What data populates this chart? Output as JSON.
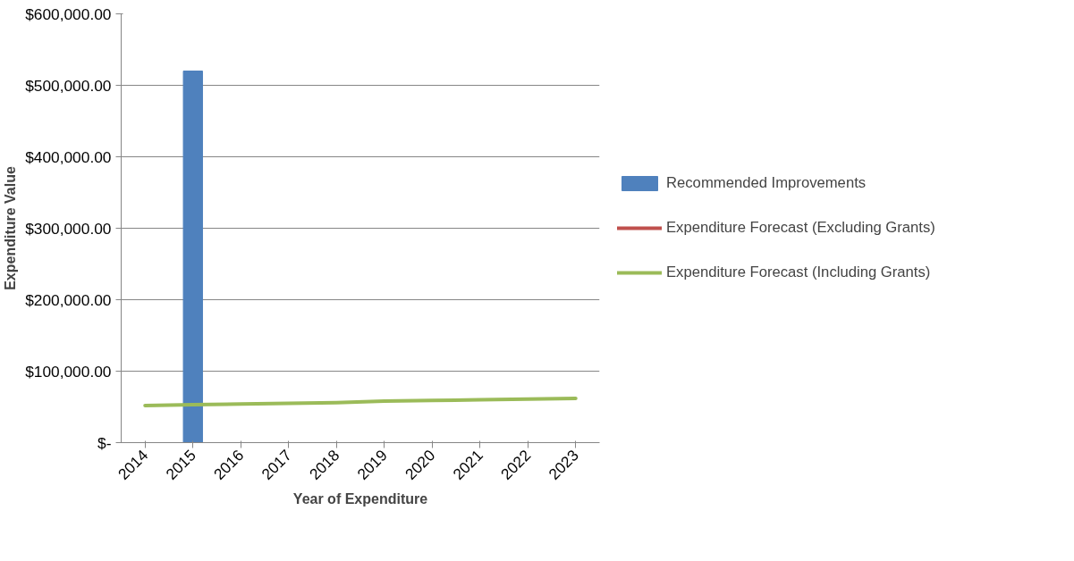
{
  "chart_data": {
    "type": "bar",
    "xlabel": "Year of Expenditure",
    "ylabel": "Expenditure Value",
    "categories": [
      "2014",
      "2015",
      "2016",
      "2017",
      "2018",
      "2019",
      "2020",
      "2021",
      "2022",
      "2023"
    ],
    "series": [
      {
        "name": "Recommended Improvements",
        "color": "#4f81bd",
        "values": [
          null,
          520000,
          null,
          null,
          null,
          null,
          null,
          null,
          null,
          null
        ]
      },
      {
        "name": "Expenditure Forecast (Excluding Grants)",
        "type": "line",
        "color": "#c0504d",
        "values": [
          null,
          null,
          null,
          null,
          null,
          null,
          null,
          null,
          null,
          null
        ]
      },
      {
        "name": "Expenditure Forecast (Including Grants)",
        "type": "line",
        "color": "#9bbb59",
        "values": [
          52000,
          53000,
          54000,
          55000,
          56000,
          58000,
          59000,
          60000,
          61000,
          62000
        ]
      }
    ],
    "ylim": [
      0,
      600000
    ],
    "yticks": [
      {
        "value": 0,
        "label": "$-"
      },
      {
        "value": 100000,
        "label": "$100,000.00"
      },
      {
        "value": 200000,
        "label": "$200,000.00"
      },
      {
        "value": 300000,
        "label": "$300,000.00"
      },
      {
        "value": 400000,
        "label": "$400,000.00"
      },
      {
        "value": 500000,
        "label": "$500,000.00"
      },
      {
        "value": 600000,
        "label": "$600,000.00"
      }
    ],
    "grid": "y",
    "legend": "right"
  }
}
